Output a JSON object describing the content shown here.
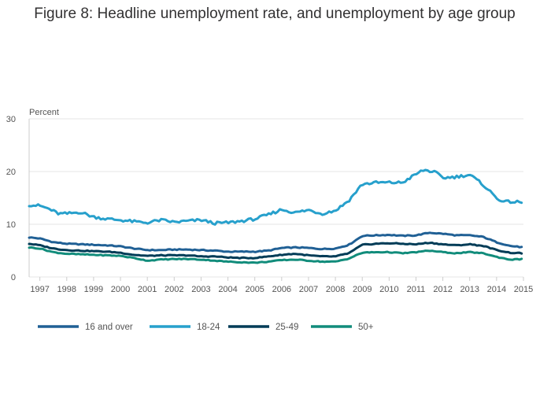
{
  "chart_data": {
    "type": "line",
    "title": "Figure 8: Headline unemployment rate, and unemployment by age group",
    "ylabel": "Percent",
    "xlabel": "",
    "ylim": [
      0,
      30
    ],
    "yticks": [
      0,
      10,
      20,
      30
    ],
    "xlim": [
      1996.6,
      2015.0
    ],
    "xticks": [
      1997,
      1998,
      1999,
      2000,
      2001,
      2002,
      2003,
      2004,
      2005,
      2006,
      2007,
      2008,
      2009,
      2010,
      2011,
      2012,
      2013,
      2014,
      2015
    ],
    "grid": true,
    "legend_position": "bottom",
    "series": [
      {
        "name": "16 and over",
        "color": "#206095",
        "x": [
          1996.6,
          1997.0,
          1997.5,
          1998.0,
          1998.5,
          1999.0,
          1999.5,
          2000.0,
          2000.5,
          2001.0,
          2001.5,
          2002.0,
          2002.5,
          2003.0,
          2003.5,
          2004.0,
          2004.5,
          2005.0,
          2005.5,
          2006.0,
          2006.5,
          2007.0,
          2007.5,
          2008.0,
          2008.5,
          2009.0,
          2009.5,
          2010.0,
          2010.5,
          2011.0,
          2011.5,
          2012.0,
          2012.5,
          2013.0,
          2013.5,
          2014.0,
          2014.5,
          2015.0
        ],
        "values": [
          7.5,
          7.3,
          6.6,
          6.3,
          6.2,
          6.1,
          6.0,
          5.8,
          5.4,
          5.1,
          5.1,
          5.2,
          5.2,
          5.1,
          5.0,
          4.8,
          4.8,
          4.8,
          5.0,
          5.5,
          5.6,
          5.5,
          5.3,
          5.4,
          6.1,
          7.8,
          7.9,
          8.0,
          7.8,
          7.9,
          8.4,
          8.2,
          7.9,
          7.9,
          7.6,
          6.6,
          5.9,
          5.6
        ]
      },
      {
        "name": "18-24",
        "color": "#27a0cc",
        "x": [
          1996.6,
          1997.0,
          1997.3,
          1997.7,
          1998.0,
          1998.5,
          1999.0,
          1999.5,
          2000.0,
          2000.5,
          2001.0,
          2001.5,
          2002.0,
          2002.5,
          2003.0,
          2003.5,
          2004.0,
          2004.5,
          2005.0,
          2005.5,
          2006.0,
          2006.5,
          2007.0,
          2007.5,
          2008.0,
          2008.5,
          2009.0,
          2009.5,
          2010.0,
          2010.5,
          2011.0,
          2011.3,
          2011.7,
          2012.0,
          2012.5,
          2013.0,
          2013.5,
          2014.0,
          2014.3,
          2014.5,
          2015.0
        ],
        "values": [
          13.7,
          13.5,
          13.0,
          12.0,
          12.0,
          12.3,
          11.4,
          11.0,
          10.8,
          10.5,
          10.3,
          10.8,
          10.4,
          10.6,
          10.8,
          10.2,
          10.3,
          10.6,
          11.0,
          11.8,
          12.8,
          12.2,
          12.7,
          12.0,
          12.6,
          14.5,
          17.6,
          17.9,
          17.9,
          17.9,
          19.5,
          20.3,
          19.9,
          18.8,
          19.0,
          19.4,
          17.5,
          15.0,
          14.2,
          14.3,
          14.1
        ]
      },
      {
        "name": "25-49",
        "color": "#003c57",
        "x": [
          1996.6,
          1997.0,
          1997.5,
          1998.0,
          1998.5,
          1999.0,
          1999.5,
          2000.0,
          2000.5,
          2001.0,
          2001.5,
          2002.0,
          2002.5,
          2003.0,
          2003.5,
          2004.0,
          2004.5,
          2005.0,
          2005.5,
          2006.0,
          2006.5,
          2007.0,
          2007.5,
          2008.0,
          2008.5,
          2009.0,
          2009.5,
          2010.0,
          2010.5,
          2011.0,
          2011.5,
          2012.0,
          2012.5,
          2013.0,
          2013.5,
          2014.0,
          2014.5,
          2015.0
        ],
        "values": [
          6.3,
          6.0,
          5.4,
          5.1,
          5.0,
          4.9,
          4.8,
          4.6,
          4.2,
          4.0,
          4.1,
          4.1,
          4.1,
          3.9,
          3.9,
          3.7,
          3.6,
          3.6,
          3.9,
          4.2,
          4.4,
          4.1,
          3.9,
          3.9,
          4.5,
          6.1,
          6.3,
          6.4,
          6.3,
          6.2,
          6.5,
          6.2,
          6.0,
          6.2,
          5.9,
          5.1,
          4.6,
          4.5
        ]
      },
      {
        "name": "50+",
        "color": "#118c7b",
        "x": [
          1996.6,
          1997.0,
          1997.5,
          1998.0,
          1998.5,
          1999.0,
          1999.5,
          2000.0,
          2000.5,
          2001.0,
          2001.5,
          2002.0,
          2002.5,
          2003.0,
          2003.5,
          2004.0,
          2004.5,
          2005.0,
          2005.5,
          2006.0,
          2006.5,
          2007.0,
          2007.5,
          2008.0,
          2008.5,
          2009.0,
          2009.5,
          2010.0,
          2010.5,
          2011.0,
          2011.5,
          2012.0,
          2012.5,
          2013.0,
          2013.5,
          2014.0,
          2014.5,
          2015.0
        ],
        "values": [
          5.6,
          5.4,
          4.7,
          4.4,
          4.3,
          4.2,
          4.1,
          4.0,
          3.6,
          3.1,
          3.3,
          3.4,
          3.4,
          3.3,
          3.1,
          2.9,
          2.8,
          2.7,
          2.9,
          3.2,
          3.3,
          3.1,
          2.9,
          2.9,
          3.5,
          4.6,
          4.7,
          4.7,
          4.5,
          4.7,
          5.0,
          4.7,
          4.5,
          4.7,
          4.5,
          3.8,
          3.3,
          3.4
        ]
      }
    ]
  }
}
